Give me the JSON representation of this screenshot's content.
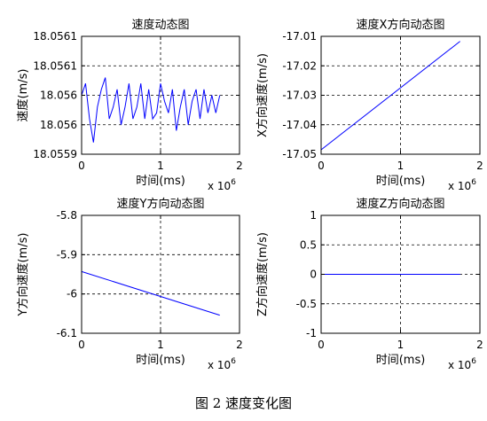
{
  "figure_caption": "图 2  速度变化图",
  "chart_data": [
    {
      "type": "line",
      "title": "速度动态图",
      "xlabel": "时间(ms)",
      "ylabel": "速度(m/s)",
      "x_exponent_label": "x 10",
      "x_exponent": "6",
      "xlim": [
        0,
        2
      ],
      "ylim": [
        18.0559,
        18.0561
      ],
      "xticks": [
        0,
        1,
        2
      ],
      "xtick_labels": [
        "0",
        "1",
        "2"
      ],
      "yticks": [
        18.0559,
        18.05595,
        18.056,
        18.05605,
        18.0561
      ],
      "ytick_labels": [
        "18.0559",
        "18.056",
        "18.056",
        "18.0561",
        "18.0561"
      ],
      "grid": true,
      "line_color": "#0000ff",
      "series": [
        {
          "x": [
            0,
            0.05,
            0.1,
            0.15,
            0.2,
            0.25,
            0.3,
            0.35,
            0.4,
            0.45,
            0.5,
            0.55,
            0.6,
            0.65,
            0.7,
            0.75,
            0.8,
            0.85,
            0.9,
            0.95,
            1.0,
            1.05,
            1.1,
            1.15,
            1.2,
            1.25,
            1.3,
            1.35,
            1.4,
            1.45,
            1.5,
            1.55,
            1.6,
            1.65,
            1.7,
            1.75
          ],
          "y": [
            18.056,
            18.05602,
            18.05596,
            18.05592,
            18.05598,
            18.05601,
            18.05603,
            18.05596,
            18.05598,
            18.05601,
            18.05595,
            18.05598,
            18.05602,
            18.05596,
            18.05598,
            18.05602,
            18.05596,
            18.05601,
            18.05596,
            18.05597,
            18.05602,
            18.05599,
            18.05597,
            18.05601,
            18.05594,
            18.05598,
            18.05601,
            18.05595,
            18.05599,
            18.05601,
            18.05596,
            18.05601,
            18.05597,
            18.056,
            18.05597,
            18.056
          ]
        }
      ]
    },
    {
      "type": "line",
      "title": "速度X方向动态图",
      "xlabel": "时间(ms)",
      "ylabel": "X方向速度(m/s)",
      "x_exponent_label": "x 10",
      "x_exponent": "6",
      "xlim": [
        0,
        2
      ],
      "ylim": [
        -17.05,
        -17.01
      ],
      "xticks": [
        0,
        1,
        2
      ],
      "xtick_labels": [
        "0",
        "1",
        "2"
      ],
      "yticks": [
        -17.05,
        -17.04,
        -17.03,
        -17.02,
        -17.01
      ],
      "ytick_labels": [
        "-17.05",
        "-17.04",
        "-17.03",
        "-17.02",
        "-17.01"
      ],
      "grid": true,
      "line_color": "#0000ff",
      "series": [
        {
          "x": [
            0,
            1.75
          ],
          "y": [
            -17.0485,
            -17.0117
          ]
        }
      ]
    },
    {
      "type": "line",
      "title": "速度Y方向动态图",
      "xlabel": "时间(ms)",
      "ylabel": "Y方向速度(m/s)",
      "x_exponent_label": "x 10",
      "x_exponent": "6",
      "xlim": [
        0,
        2
      ],
      "ylim": [
        -6.1,
        -5.8
      ],
      "xticks": [
        0,
        1,
        2
      ],
      "xtick_labels": [
        "0",
        "1",
        "2"
      ],
      "yticks": [
        -6.1,
        -6.0,
        -5.9,
        -5.8
      ],
      "ytick_labels": [
        "-6.1",
        "-6",
        "-5.9",
        "-5.8"
      ],
      "grid": true,
      "line_color": "#0000ff",
      "series": [
        {
          "x": [
            0,
            1.75
          ],
          "y": [
            -5.943,
            -6.054
          ]
        }
      ]
    },
    {
      "type": "line",
      "title": "速度Z方向动态图",
      "xlabel": "时间(ms)",
      "ylabel": "Z方向速度(m/s)",
      "x_exponent_label": "x 10",
      "x_exponent": "6",
      "xlim": [
        0,
        2
      ],
      "ylim": [
        -1,
        1
      ],
      "xticks": [
        0,
        1,
        2
      ],
      "xtick_labels": [
        "0",
        "1",
        "2"
      ],
      "yticks": [
        -1,
        -0.5,
        0,
        0.5,
        1
      ],
      "ytick_labels": [
        "-1",
        "-0.5",
        "0",
        "0.5",
        "1"
      ],
      "grid": true,
      "line_color": "#0000ff",
      "series": [
        {
          "x": [
            0,
            1.75
          ],
          "y": [
            0,
            0
          ]
        }
      ]
    }
  ]
}
